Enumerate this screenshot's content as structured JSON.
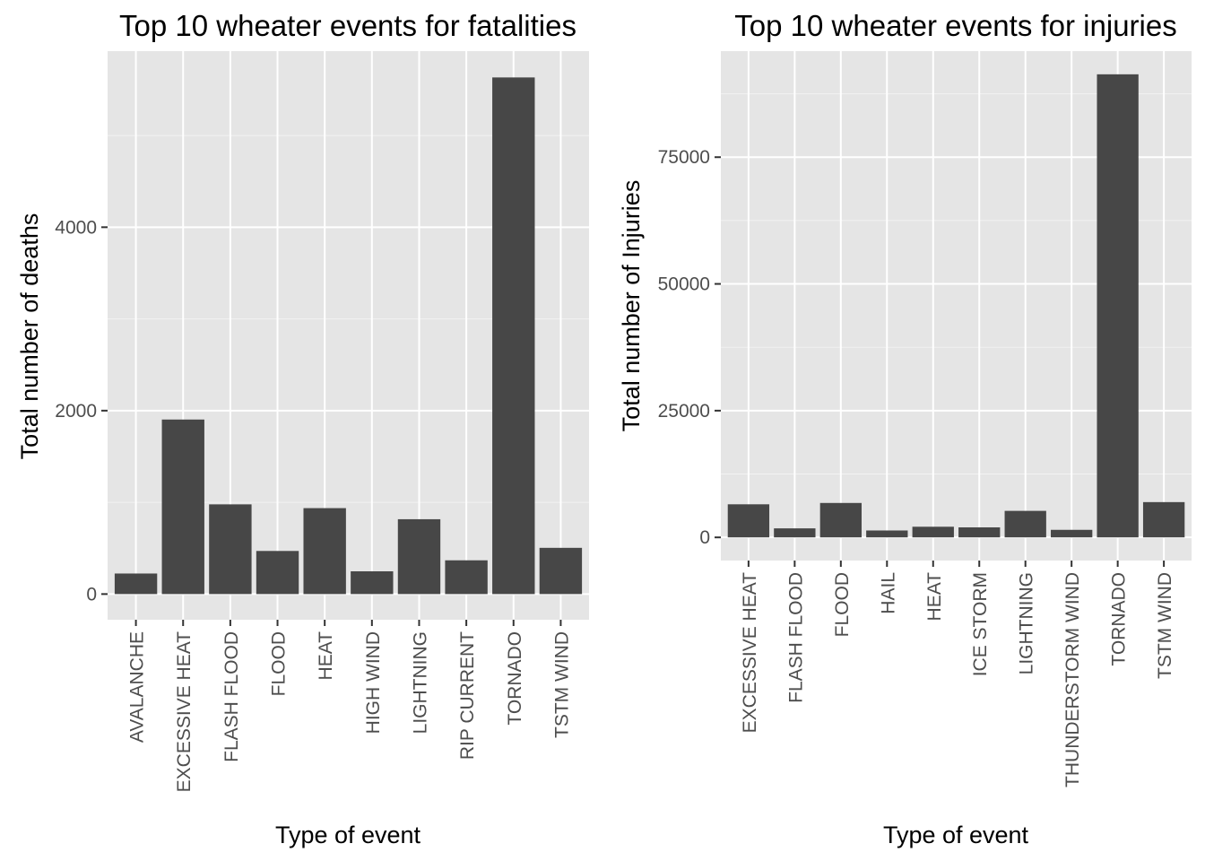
{
  "chart_data": [
    {
      "type": "bar",
      "title": "Top 10 wheater events for fatalities",
      "xlabel": "Type of event",
      "ylabel": "Total number of deaths",
      "categories": [
        "AVALANCHE",
        "EXCESSIVE HEAT",
        "FLASH FLOOD",
        "FLOOD",
        "HEAT",
        "HIGH WIND",
        "LIGHTNING",
        "RIP CURRENT",
        "TORNADO",
        "TSTM WIND"
      ],
      "values": [
        224,
        1903,
        978,
        470,
        937,
        248,
        816,
        368,
        5633,
        504
      ],
      "y_ticks": [
        0,
        2000,
        4000
      ],
      "ylim": [
        -280,
        5920
      ],
      "grid": true,
      "bar_color": "#474747",
      "panel_color": "#e5e5e5"
    },
    {
      "type": "bar",
      "title": "Top 10 wheater events for injuries",
      "xlabel": "Type of event",
      "ylabel": "Total number of Injuries",
      "categories": [
        "EXCESSIVE HEAT",
        "FLASH FLOOD",
        "FLOOD",
        "HAIL",
        "HEAT",
        "ICE STORM",
        "LIGHTNING",
        "THUNDERSTORM WIND",
        "TORNADO",
        "TSTM WIND"
      ],
      "values": [
        6525,
        1777,
        6789,
        1361,
        2100,
        1975,
        5230,
        1488,
        91346,
        6957
      ],
      "y_ticks": [
        0,
        25000,
        50000,
        75000
      ],
      "ylim": [
        -4570,
        95920
      ],
      "grid": true,
      "bar_color": "#474747",
      "panel_color": "#e5e5e5"
    }
  ]
}
